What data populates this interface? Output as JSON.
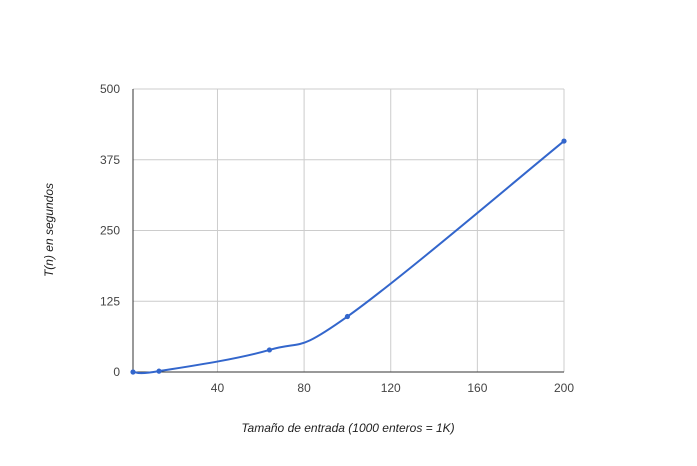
{
  "chart_data": {
    "type": "line",
    "title": "",
    "xlabel": "Tamaño de entrada (1000 enteros = 1K)",
    "ylabel": "T(n) en segundos",
    "xlim": [
      1,
      200
    ],
    "ylim": [
      0,
      500
    ],
    "x_ticks": [
      40,
      80,
      120,
      160,
      200
    ],
    "x_tick_labels": [
      "40",
      "80",
      "120",
      "160",
      "200"
    ],
    "y_ticks": [
      0,
      125,
      250,
      375,
      500
    ],
    "y_tick_labels": [
      "0",
      "125",
      "250",
      "375",
      "500"
    ],
    "grid": true,
    "legend": "none",
    "series": [
      {
        "color": "#3366cc",
        "x": [
          1,
          13,
          64,
          100,
          200
        ],
        "y": [
          0,
          1.5,
          39,
          98,
          408
        ]
      }
    ]
  }
}
